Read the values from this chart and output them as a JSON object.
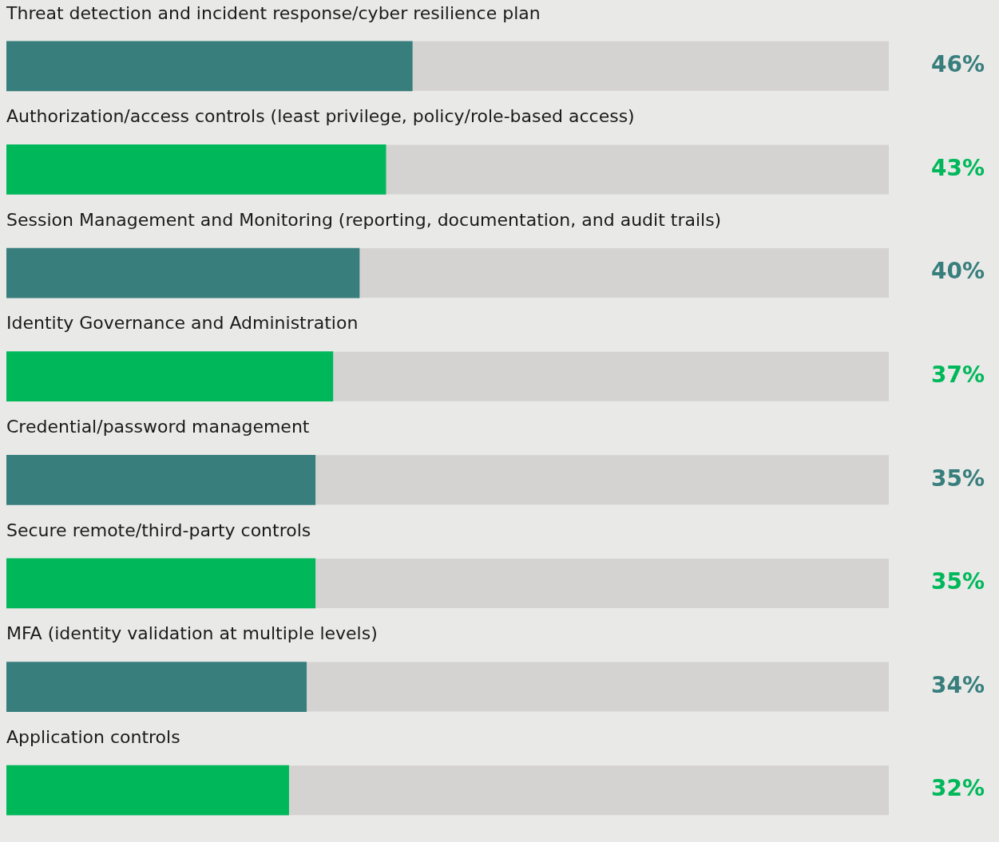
{
  "chart_data": {
    "type": "bar",
    "orientation": "horizontal",
    "categories": [
      "Threat detection and incident response/cyber resilience plan",
      "Authorization/access controls (least privilege, policy/role-based access)",
      "Session Management and Monitoring (reporting, documentation, and audit trails)",
      "Identity Governance and Administration",
      "Credential/password management",
      "Secure remote/third-party controls",
      "MFA (identity validation at multiple levels)",
      "Application controls"
    ],
    "values": [
      46,
      43,
      40,
      37,
      35,
      35,
      34,
      32
    ],
    "colors": [
      "#377e7c",
      "#00b85a",
      "#377e7c",
      "#00b85a",
      "#377e7c",
      "#00b85a",
      "#377e7c",
      "#00b85a"
    ],
    "value_labels": [
      "46%",
      "43%",
      "40%",
      "37%",
      "35%",
      "35%",
      "34%",
      "32%"
    ],
    "xlim": [
      0,
      100
    ],
    "tick_labels": false
  }
}
